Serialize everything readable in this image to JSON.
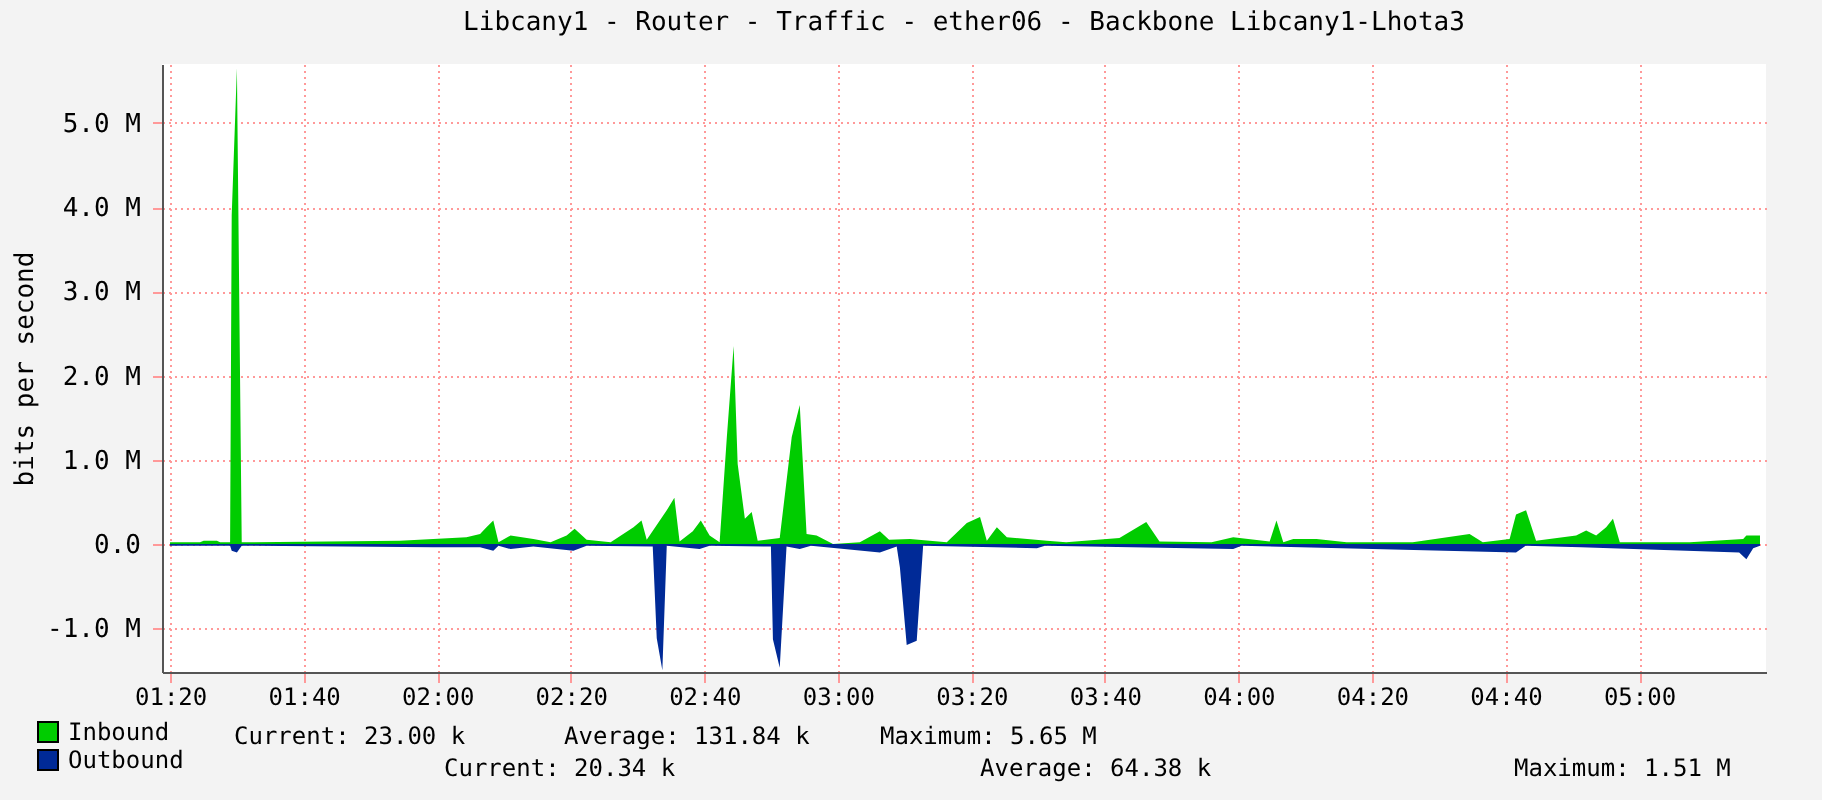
{
  "chart_data": {
    "type": "area",
    "title": "Libcany1 - Router - Traffic - ether06 - Backbone Libcany1-Lhota3",
    "ylabel": "bits per second",
    "xlim": [
      1.313,
      5.317
    ],
    "ylim": [
      -1.52,
      5.7
    ],
    "xticks": [
      {
        "value": 1.3333,
        "label": "01:20"
      },
      {
        "value": 1.6667,
        "label": "01:40"
      },
      {
        "value": 2,
        "label": "02:00"
      },
      {
        "value": 2.3333,
        "label": "02:20"
      },
      {
        "value": 2.6667,
        "label": "02:40"
      },
      {
        "value": 3,
        "label": "03:00"
      },
      {
        "value": 3.3333,
        "label": "03:20"
      },
      {
        "value": 3.6667,
        "label": "03:40"
      },
      {
        "value": 4,
        "label": "04:00"
      },
      {
        "value": 4.3333,
        "label": "04:20"
      },
      {
        "value": 4.6667,
        "label": "04:40"
      },
      {
        "value": 5,
        "label": "05:00"
      }
    ],
    "yticks": [
      {
        "value": -1,
        "label": "-1.0 M"
      },
      {
        "value": 0,
        "label": "0.0"
      },
      {
        "value": 1,
        "label": "1.0 M"
      },
      {
        "value": 2,
        "label": "2.0 M"
      },
      {
        "value": 3,
        "label": "3.0 M"
      },
      {
        "value": 4,
        "label": "4.0 M"
      },
      {
        "value": 5,
        "label": "5.0 M"
      }
    ],
    "grid": true,
    "legend": "bottom left",
    "series": [
      {
        "name": "Inbound",
        "color": "#00cc00",
        "x": [
          1.333,
          1.408,
          1.417,
          1.45,
          1.458,
          1.483,
          1.487,
          1.5,
          1.512,
          1.907,
          1.99,
          2.073,
          2.107,
          2.123,
          2.14,
          2.153,
          2.183,
          2.24,
          2.283,
          2.323,
          2.343,
          2.373,
          2.433,
          2.49,
          2.51,
          2.523,
          2.573,
          2.592,
          2.605,
          2.638,
          2.658,
          2.68,
          2.705,
          2.723,
          2.74,
          2.75,
          2.768,
          2.785,
          2.8,
          2.855,
          2.885,
          2.905,
          2.922,
          2.947,
          2.988,
          3.055,
          3.105,
          3.128,
          3.18,
          3.272,
          3.322,
          3.355,
          3.372,
          3.397,
          3.422,
          3.522,
          3.57,
          3.703,
          3.77,
          3.803,
          3.933,
          3.987,
          4.078,
          4.095,
          4.112,
          4.137,
          4.195,
          4.27,
          4.435,
          4.577,
          4.61,
          4.677,
          4.693,
          4.718,
          4.743,
          4.843,
          4.868,
          4.893,
          4.918,
          4.935,
          4.952,
          5.127,
          5.26,
          5.268,
          5.302
        ],
        "values": [
          0.02,
          0.02,
          0.04,
          0.04,
          0.02,
          0.02,
          3.9,
          5.65,
          0.02,
          0.04,
          0.06,
          0.08,
          0.12,
          0.2,
          0.28,
          0.02,
          0.1,
          0.06,
          0.02,
          0.1,
          0.18,
          0.05,
          0.02,
          0.2,
          0.28,
          0.05,
          0.4,
          0.55,
          0.03,
          0.15,
          0.28,
          0.1,
          0.02,
          1.27,
          2.35,
          0.95,
          0.3,
          0.38,
          0.04,
          0.07,
          1.27,
          1.65,
          0.12,
          0.1,
          0.0,
          0.02,
          0.15,
          0.05,
          0.06,
          0.02,
          0.25,
          0.32,
          0.04,
          0.2,
          0.08,
          0.04,
          0.02,
          0.07,
          0.26,
          0.03,
          0.02,
          0.08,
          0.03,
          0.28,
          0.02,
          0.06,
          0.06,
          0.02,
          0.02,
          0.12,
          0.02,
          0.06,
          0.35,
          0.4,
          0.04,
          0.1,
          0.16,
          0.1,
          0.2,
          0.3,
          0.02,
          0.02,
          0.06,
          0.1,
          0.1
        ]
      },
      {
        "name": "Outbound",
        "color": "#002a97",
        "x": [
          1.333,
          1.483,
          1.487,
          1.5,
          1.512,
          1.99,
          2.107,
          2.14,
          2.153,
          2.183,
          2.24,
          2.34,
          2.373,
          2.538,
          2.548,
          2.562,
          2.573,
          2.655,
          2.68,
          2.833,
          2.838,
          2.855,
          2.872,
          2.905,
          2.933,
          3.105,
          3.147,
          3.155,
          3.172,
          3.197,
          3.213,
          3.497,
          3.517,
          3.987,
          4.008,
          4.693,
          4.717,
          4.855,
          5.25,
          5.268,
          5.285,
          5.302
        ],
        "values": [
          -0.02,
          -0.02,
          -0.08,
          -0.1,
          -0.02,
          -0.04,
          -0.04,
          -0.08,
          -0.02,
          -0.06,
          -0.03,
          -0.08,
          -0.02,
          -0.03,
          -1.12,
          -1.5,
          -0.02,
          -0.06,
          -0.02,
          -0.03,
          -1.13,
          -1.47,
          -0.03,
          -0.06,
          -0.02,
          -0.1,
          -0.03,
          -0.28,
          -1.2,
          -1.15,
          -0.02,
          -0.05,
          -0.02,
          -0.06,
          -0.02,
          -0.1,
          -0.02,
          -0.04,
          -0.1,
          -0.18,
          -0.05,
          -0.02
        ]
      }
    ],
    "annotations": [
      "Current:   23.00 k",
      "Average:  131.84 k",
      "Maximum:    5.65 M",
      "Current:   20.34 k",
      "Average:   64.38 k",
      "Maximum:    1.51 M"
    ]
  }
}
